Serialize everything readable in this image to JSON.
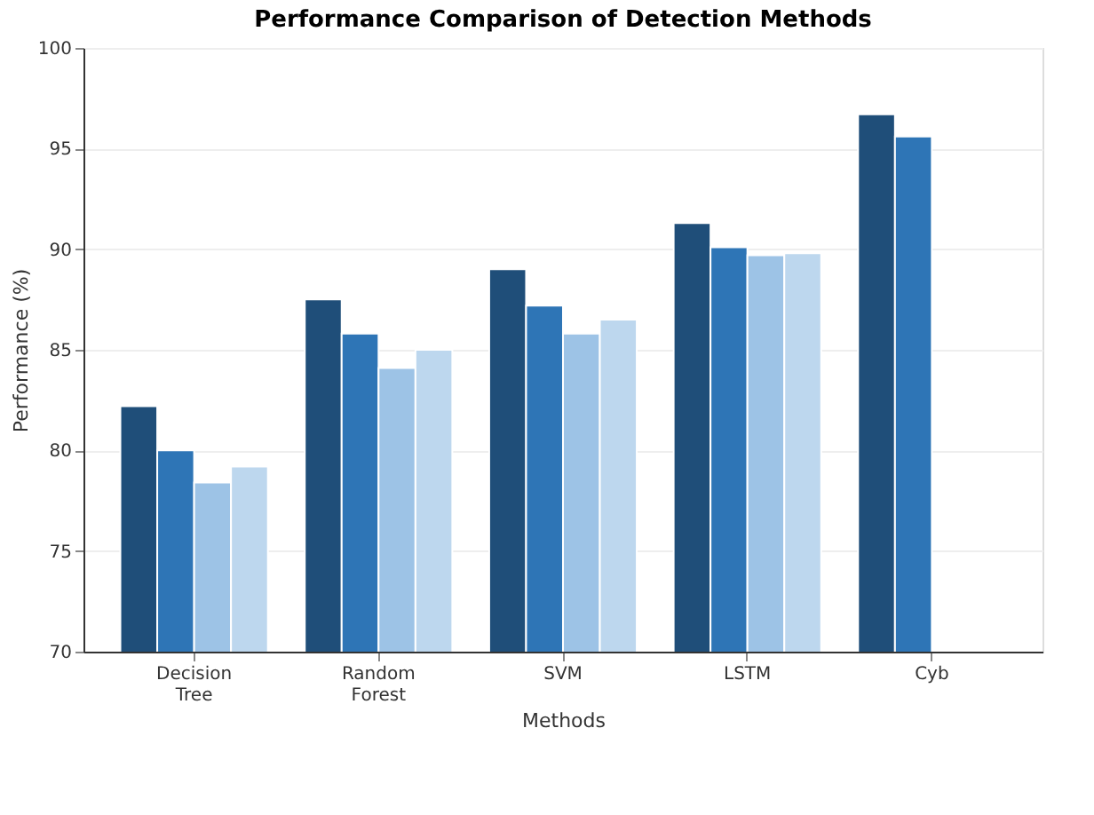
{
  "chart_data": {
    "type": "bar",
    "title": "Performance Comparison of Detection Methods",
    "xlabel": "Methods",
    "ylabel": "Performance (%)",
    "categories": [
      "Decision Tree",
      "Random Forest",
      "SVM",
      "LSTM",
      "Cyb"
    ],
    "series": [
      {
        "color": "#1f4e79",
        "values": [
          82.2,
          87.5,
          89.0,
          91.3,
          96.7
        ]
      },
      {
        "color": "#2e75b6",
        "values": [
          80.0,
          85.8,
          87.2,
          90.1,
          95.6
        ]
      },
      {
        "color": "#9dc3e6",
        "values": [
          78.4,
          84.1,
          85.8,
          89.7,
          null
        ]
      },
      {
        "color": "#bdd7ee",
        "values": [
          79.2,
          85.0,
          86.5,
          89.8,
          null
        ]
      }
    ],
    "ylim": [
      70,
      100
    ],
    "yticks": [
      70,
      75,
      80,
      85,
      90,
      95,
      100
    ],
    "grid": "y"
  }
}
